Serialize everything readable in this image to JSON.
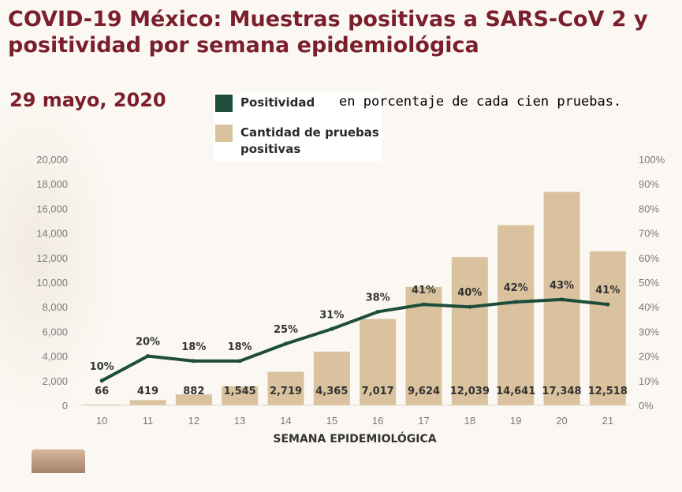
{
  "title": "COVID-19 México: Muestras positivas a SARS-CoV 2 y positividad por semana epidemiológica",
  "date": "29 mayo, 2020",
  "note": "en porcentaje de cada cien pruebas.",
  "colors": {
    "title": "#7a1f2b",
    "line": "#1e4d3c",
    "bar": "#d9c29d"
  },
  "legend": [
    {
      "label": "Positividad",
      "color": "#1e4d3c"
    },
    {
      "label": "Cantidad de pruebas positivas",
      "color": "#d9c29d"
    }
  ],
  "chart_data": {
    "type": "bar",
    "xlabel": "SEMANA EPIDEMIOLÓGICA",
    "categories": [
      "10",
      "11",
      "12",
      "13",
      "14",
      "15",
      "16",
      "17",
      "18",
      "19",
      "20",
      "21"
    ],
    "series": [
      {
        "name": "Cantidad de pruebas positivas",
        "type": "bar",
        "values": [
          66,
          419,
          882,
          1545,
          2719,
          4365,
          7017,
          9624,
          12039,
          14641,
          17348,
          12518
        ],
        "labels": [
          "66",
          "419",
          "882",
          "1,545",
          "2,719",
          "4,365",
          "7,017",
          "9,624",
          "12,039",
          "14,641",
          "17,348",
          "12,518"
        ]
      },
      {
        "name": "Positividad",
        "type": "line",
        "axis": "right",
        "values": [
          10,
          20,
          18,
          18,
          25,
          31,
          38,
          41,
          40,
          42,
          43,
          41
        ],
        "labels": [
          "10%",
          "20%",
          "18%",
          "18%",
          "25%",
          "31%",
          "38%",
          "41%",
          "40%",
          "42%",
          "43%",
          "41%"
        ]
      }
    ],
    "ylim_left": [
      0,
      20000
    ],
    "ylim_right": [
      0,
      100
    ],
    "yticks_left": [
      "0",
      "2,000",
      "4,000",
      "6,000",
      "8,000",
      "10,000",
      "12,000",
      "14,000",
      "16,000",
      "18,000",
      "20,000"
    ],
    "yticks_right": [
      "0%",
      "10%",
      "20%",
      "30%",
      "40%",
      "50%",
      "60%",
      "70%",
      "80%",
      "90%",
      "100%"
    ],
    "grid": false,
    "legend_position": "top"
  }
}
